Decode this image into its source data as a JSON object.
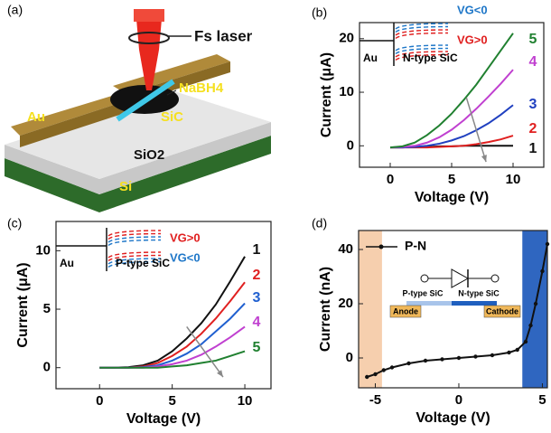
{
  "illustration": {
    "label": "(a)",
    "laser": "Fs laser",
    "reagent": "NaBH4",
    "nanowire": "SiC",
    "electrode": "Au",
    "oxide": "SiO2",
    "substrate": "Si"
  },
  "chart_data": [
    {
      "type": "line",
      "label": "(b)",
      "x_label": "Voltage (V)",
      "y_label": "Current (μA)",
      "x": [
        0,
        1,
        2,
        3,
        4,
        5,
        6,
        7,
        8,
        9,
        10
      ],
      "series": [
        {
          "name": "1",
          "color": "#111111",
          "values": [
            -0.3,
            -0.3,
            -0.2,
            -0.2,
            -0.1,
            -0.1,
            0,
            0,
            0,
            0,
            0
          ]
        },
        {
          "name": "2",
          "color": "#e02020",
          "values": [
            -0.3,
            -0.3,
            -0.3,
            -0.3,
            -0.2,
            -0.1,
            0,
            0.3,
            0.7,
            1.2,
            1.9
          ]
        },
        {
          "name": "3",
          "color": "#2040c0",
          "values": [
            -0.3,
            -0.3,
            -0.2,
            0,
            0.4,
            1,
            1.8,
            2.9,
            4.2,
            5.8,
            7.6
          ]
        },
        {
          "name": "4",
          "color": "#c040d0",
          "values": [
            -0.3,
            -0.2,
            0,
            0.6,
            1.6,
            3,
            4.8,
            6.9,
            9.2,
            11.6,
            14.2
          ]
        },
        {
          "name": "5",
          "color": "#208030",
          "values": [
            -0.3,
            -0.1,
            0.6,
            2,
            3.8,
            6,
            8.6,
            11.4,
            14.6,
            17.8,
            21
          ]
        }
      ],
      "xlim": [
        -2.5,
        12.5
      ],
      "ylim": [
        -4,
        23
      ],
      "xticks": [
        0,
        5,
        10
      ],
      "yticks": [
        0,
        10,
        20
      ],
      "inset": {
        "labels": [
          {
            "text": "VG<0",
            "color": "#1f77c8"
          },
          {
            "text": "VG>0",
            "color": "#e02020"
          }
        ],
        "electrode": "Au",
        "material": "N-type SiC"
      }
    },
    {
      "type": "line",
      "label": "(c)",
      "x_label": "Voltage (V)",
      "y_label": "Current (μA)",
      "x": [
        0,
        1,
        2,
        3,
        4,
        5,
        6,
        7,
        8,
        9,
        10
      ],
      "series": [
        {
          "name": "1",
          "color": "#111111",
          "values": [
            0,
            0,
            0.05,
            0.2,
            0.6,
            1.4,
            2.5,
            3.8,
            5.4,
            7.4,
            9.5
          ]
        },
        {
          "name": "2",
          "color": "#e02020",
          "values": [
            0,
            0,
            0,
            0.1,
            0.4,
            1,
            1.8,
            2.9,
            4.2,
            5.7,
            7.3
          ]
        },
        {
          "name": "3",
          "color": "#2060d0",
          "values": [
            0,
            0,
            0,
            0.05,
            0.2,
            0.6,
            1.2,
            2,
            3.1,
            4.2,
            5.5
          ]
        },
        {
          "name": "4",
          "color": "#c040d0",
          "values": [
            0,
            0,
            0,
            0,
            0.1,
            0.3,
            0.6,
            1.1,
            1.8,
            2.6,
            3.5
          ]
        },
        {
          "name": "5",
          "color": "#208030",
          "values": [
            0,
            0,
            0,
            0,
            0,
            0.1,
            0.2,
            0.4,
            0.6,
            1,
            1.4
          ]
        }
      ],
      "xlim": [
        -3,
        11.8
      ],
      "ylim": [
        -1.8,
        12.5
      ],
      "xticks": [
        0,
        5,
        10
      ],
      "yticks": [
        0,
        5,
        10
      ],
      "inset": {
        "labels": [
          {
            "text": "VG>0",
            "color": "#e02020"
          },
          {
            "text": "VG<0",
            "color": "#1f77c8"
          }
        ],
        "electrode": "Au",
        "material": "P-type SiC"
      }
    },
    {
      "type": "line",
      "label": "(d)",
      "x_label": "Voltage (V)",
      "y_label": "Current (nA)",
      "x": [
        -5.5,
        -5,
        -4.5,
        -4,
        -3,
        -2,
        -1,
        0,
        1,
        2,
        3,
        3.5,
        4,
        4.3,
        4.6,
        5,
        5.3
      ],
      "series": [
        {
          "name": "P-N",
          "color": "#111111",
          "markers": true,
          "values": [
            -7,
            -6,
            -4.5,
            -3.5,
            -2,
            -1,
            -0.5,
            0,
            0.5,
            1,
            2,
            3,
            6,
            12,
            20,
            32,
            42
          ]
        }
      ],
      "xlim": [
        -6,
        5.3
      ],
      "ylim": [
        -11,
        47
      ],
      "xticks": [
        -5,
        0,
        5
      ],
      "yticks": [
        0,
        20,
        40
      ],
      "shaded_regions": [
        {
          "xlim": [
            -6,
            -4.6
          ],
          "color": "#f6cfae"
        },
        {
          "xlim": [
            3.8,
            5.3
          ],
          "color": "#2f66c0"
        }
      ],
      "diode": {
        "p_label": "P-type SiC",
        "n_label": "N-type SiC",
        "anode": "Anode",
        "cathode": "Cathode"
      }
    }
  ]
}
